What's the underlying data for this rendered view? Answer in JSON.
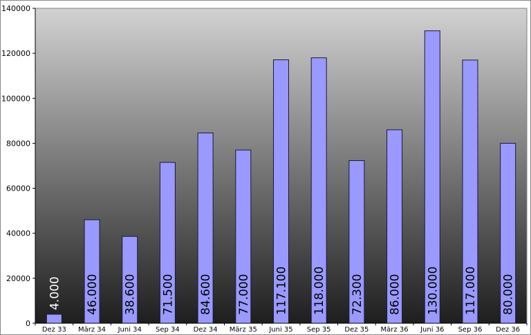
{
  "chart_data": {
    "type": "bar",
    "title": "",
    "xlabel": "",
    "ylabel": "",
    "categories": [
      "Dez 33",
      "März 34",
      "Juni 34",
      "Sep 34",
      "Dez 34",
      "März 35",
      "Juni 35",
      "Sep 35",
      "Dez 35",
      "März 36",
      "Juni 36",
      "Sep 36",
      "Dez 36"
    ],
    "values": [
      4000,
      46000,
      38600,
      71500,
      84600,
      77000,
      117100,
      118000,
      72300,
      86000,
      130000,
      117000,
      80000
    ],
    "data_labels": [
      "4.000",
      "46.000",
      "38.600",
      "71.500",
      "84.600",
      "77.000",
      "117.100",
      "118.000",
      "72.300",
      "86.000",
      "130.000",
      "117.000",
      "80.000"
    ],
    "ylim": [
      0,
      140000
    ],
    "yticks": [
      0,
      20000,
      40000,
      60000,
      80000,
      100000,
      120000,
      140000
    ],
    "grid": false,
    "legend": "none",
    "colors": {
      "bar": "#9999ff",
      "bar_outline": "#1a1a33",
      "background_top": "#d2d2d2",
      "background_bottom": "#1e1e1e"
    }
  }
}
